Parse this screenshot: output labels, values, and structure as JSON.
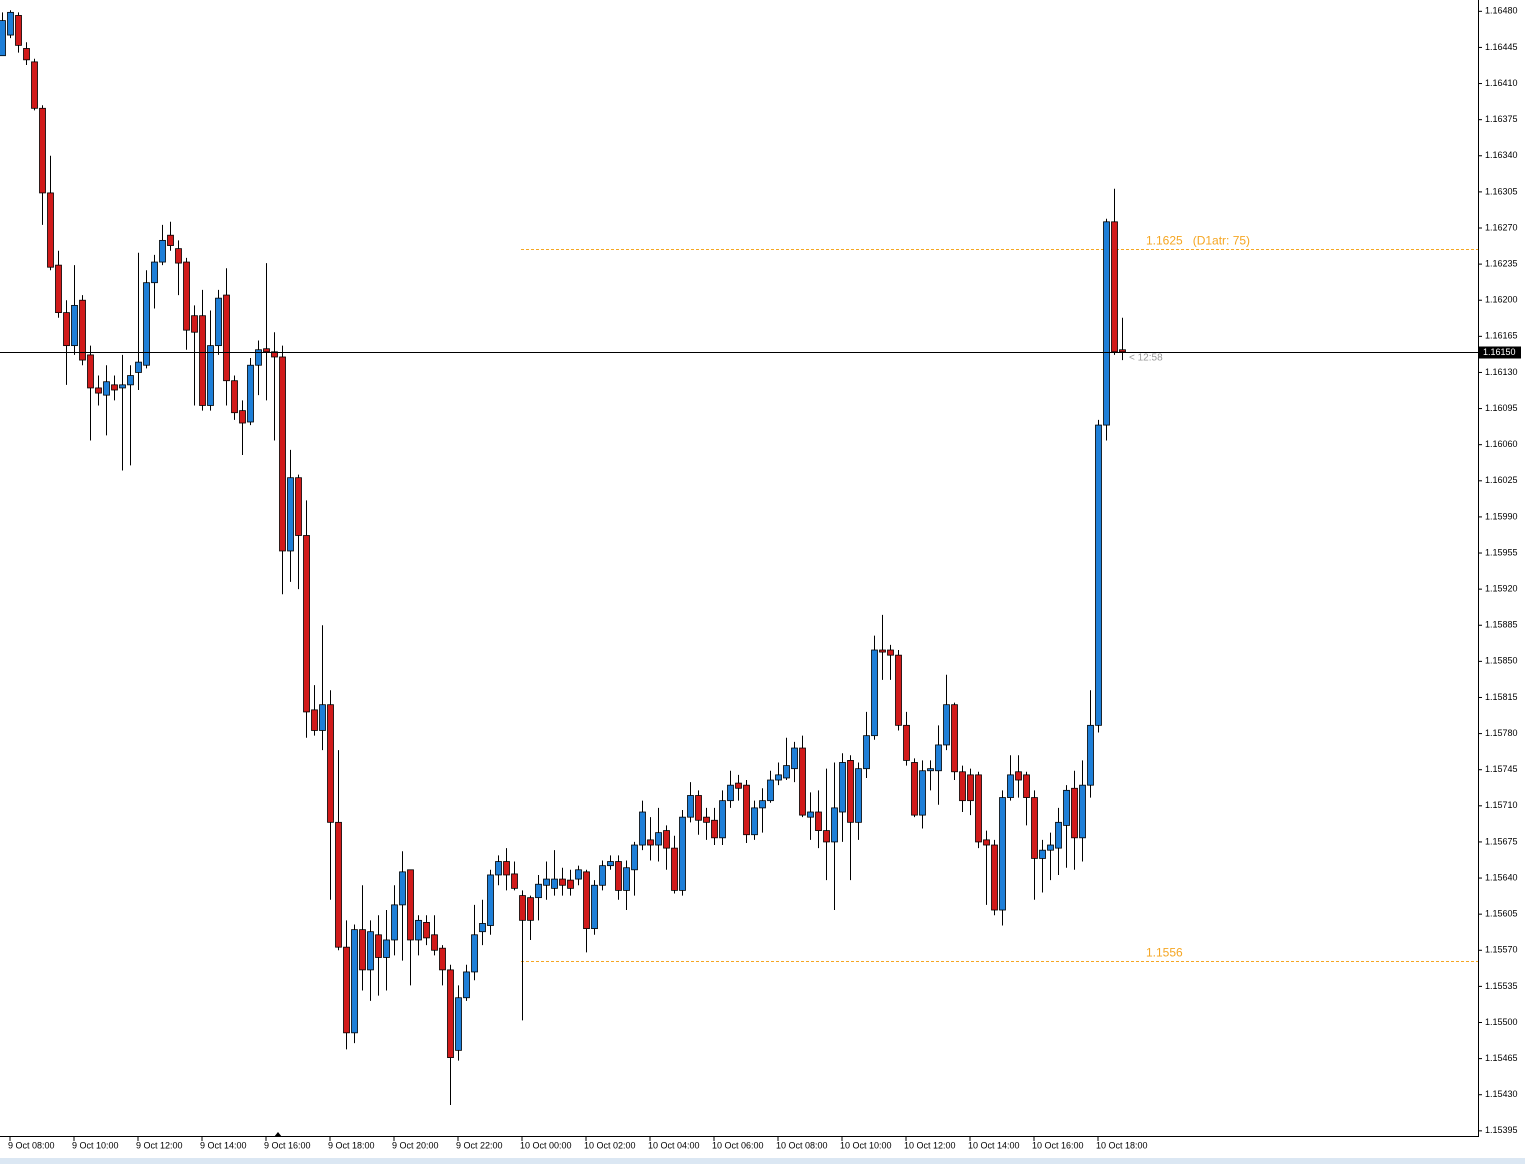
{
  "chart_data": {
    "type": "candlestick",
    "categories": [
      null,
      "9 Oct 08:00",
      null,
      null,
      null,
      null,
      null,
      null,
      null,
      "9 Oct 10:00",
      null,
      null,
      null,
      null,
      null,
      null,
      null,
      "9 Oct 12:00",
      null,
      null,
      null,
      null,
      null,
      null,
      null,
      "9 Oct 14:00",
      null,
      null,
      null,
      null,
      null,
      null,
      null,
      "9 Oct 16:00",
      null,
      null,
      null,
      null,
      null,
      null,
      null,
      "9 Oct 18:00",
      null,
      null,
      null,
      null,
      null,
      null,
      null,
      "9 Oct 20:00",
      null,
      null,
      null,
      null,
      null,
      null,
      null,
      "9 Oct 22:00",
      null,
      null,
      null,
      null,
      null,
      null,
      null,
      "10 Oct 00:00",
      null,
      null,
      null,
      null,
      null,
      null,
      null,
      "10 Oct 02:00",
      null,
      null,
      null,
      null,
      null,
      null,
      null,
      "10 Oct 04:00",
      null,
      null,
      null,
      null,
      null,
      null,
      null,
      "10 Oct 06:00",
      null,
      null,
      null,
      null,
      null,
      null,
      null,
      "10 Oct 08:00",
      null,
      null,
      null,
      null,
      null,
      null,
      null,
      "10 Oct 10:00",
      null,
      null,
      null,
      null,
      null,
      null,
      null,
      "10 Oct 12:00",
      null,
      null,
      null,
      null,
      null,
      null,
      null,
      "10 Oct 14:00",
      null,
      null,
      null,
      null,
      null,
      null,
      null,
      "10 Oct 16:00",
      null,
      null,
      null,
      null,
      null,
      null,
      null,
      "10 Oct 18:00",
      null,
      null,
      null
    ],
    "open": [
      1.16437,
      1.16457,
      1.16476,
      1.16444,
      1.16431,
      1.16386,
      1.16304,
      1.16234,
      1.16188,
      1.16156,
      1.162,
      1.16147,
      1.16115,
      1.16108,
      1.16118,
      1.16115,
      1.16118,
      1.1613,
      1.16137,
      1.16217,
      1.16237,
      1.16263,
      1.1625,
      1.16237,
      1.16185,
      1.16185,
      1.16098,
      1.16156,
      1.16205,
      1.16122,
      1.16093,
      1.16082,
      1.16137,
      1.16153,
      1.1615,
      1.16145,
      1.15957,
      1.16028,
      1.15972,
      1.15803,
      1.15783,
      1.15808,
      1.15694,
      1.15573,
      1.1549,
      1.1559,
      1.15551,
      1.15585,
      1.15563,
      1.1558,
      1.15614,
      1.15648,
      1.1558,
      1.15597,
      1.15585,
      1.15572,
      1.15551,
      1.15473,
      1.15524,
      1.15549,
      1.15588,
      1.15594,
      1.15643,
      1.15656,
      1.15644,
      1.15623,
      1.15621,
      1.15621,
      1.15633,
      1.1563,
      1.15639,
      1.15638,
      1.15639,
      1.15646,
      1.15591,
      1.15633,
      1.15652,
      1.15656,
      1.15628,
      1.15648,
      1.15672,
      1.15677,
      1.15672,
      1.15686,
      1.15669,
      1.15628,
      1.15699,
      1.1572,
      1.15699,
      1.15696,
      1.15679,
      1.15715,
      1.15732,
      1.1573,
      1.15682,
      1.15708,
      1.15715,
      1.15735,
      1.15737,
      1.15746,
      1.15766,
      1.15699,
      1.15704,
      1.15686,
      1.15675,
      1.15704,
      1.15754,
      1.15694,
      1.15746,
      1.15778,
      1.15861,
      1.15861,
      1.15856,
      1.15788,
      1.15752,
      1.15701,
      1.15744,
      1.15744,
      1.15769,
      1.15808,
      1.15743,
      1.1574,
      1.1574,
      1.15677,
      1.15672,
      1.15609,
      1.15718,
      1.15743,
      1.1574,
      1.15718,
      1.15659,
      1.15667,
      1.15669,
      1.15691,
      1.15727,
      1.15679,
      1.1573,
      1.15788,
      1.16079,
      1.16276,
      1.16152
    ],
    "high": [
      1.16479,
      1.16481,
      1.16479,
      1.1645,
      1.16434,
      1.16389,
      1.1634,
      1.16248,
      1.162,
      1.16234,
      1.16205,
      1.16156,
      1.16127,
      1.16137,
      1.16127,
      1.16147,
      1.16137,
      1.16246,
      1.16229,
      1.16244,
      1.16273,
      1.16276,
      1.16258,
      1.16241,
      1.16195,
      1.1621,
      1.1619,
      1.1621,
      1.16231,
      1.16127,
      1.16103,
      1.16144,
      1.16161,
      1.16236,
      1.16169,
      1.16156,
      1.16055,
      1.16031,
      1.16006,
      1.15827,
      1.15885,
      1.15822,
      1.15764,
      1.15599,
      1.15595,
      1.15633,
      1.15599,
      1.15604,
      1.15609,
      1.15633,
      1.15666,
      1.15648,
      1.15604,
      1.15604,
      1.15604,
      1.15575,
      1.15556,
      1.15536,
      1.15556,
      1.15614,
      1.15619,
      1.15648,
      1.15662,
      1.15669,
      1.15656,
      1.15628,
      1.15623,
      1.15643,
      1.15656,
      1.15667,
      1.1565,
      1.15648,
      1.15652,
      1.15648,
      1.15638,
      1.15657,
      1.15662,
      1.15662,
      1.15657,
      1.15675,
      1.15715,
      1.15699,
      1.15708,
      1.15691,
      1.15681,
      1.15706,
      1.15733,
      1.15725,
      1.15708,
      1.15708,
      1.15725,
      1.15744,
      1.1574,
      1.15735,
      1.15715,
      1.15727,
      1.15744,
      1.15752,
      1.15776,
      1.15772,
      1.15778,
      1.15723,
      1.15725,
      1.15746,
      1.15752,
      1.15761,
      1.15759,
      1.15752,
      1.15801,
      1.15875,
      1.15895,
      1.15866,
      1.15861,
      1.15801,
      1.15756,
      1.15754,
      1.15754,
      1.15788,
      1.15837,
      1.1581,
      1.15749,
      1.15746,
      1.15743,
      1.15686,
      1.15677,
      1.15725,
      1.15759,
      1.15759,
      1.15743,
      1.15725,
      1.15677,
      1.15684,
      1.15708,
      1.1573,
      1.15744,
      1.15754,
      1.15822,
      1.16084,
      1.16279,
      1.16308,
      1.16183
    ],
    "low": [
      1.16437,
      1.16454,
      1.1644,
      1.16428,
      1.16384,
      1.16273,
      1.16229,
      1.16183,
      1.16118,
      1.16147,
      1.16137,
      1.16064,
      1.16098,
      1.16069,
      1.16103,
      1.16035,
      1.1604,
      1.16113,
      1.16134,
      1.16192,
      1.16234,
      1.16248,
      1.16205,
      1.16152,
      1.16098,
      1.16093,
      1.16093,
      1.16147,
      1.16098,
      1.16084,
      1.1605,
      1.16079,
      1.16108,
      1.16103,
      1.16064,
      1.15915,
      1.15927,
      1.1592,
      1.15776,
      1.15778,
      1.15764,
      1.15619,
      1.1557,
      1.15474,
      1.1548,
      1.15531,
      1.15521,
      1.15526,
      1.15531,
      1.15565,
      1.1556,
      1.15536,
      1.15565,
      1.15575,
      1.15565,
      1.15536,
      1.1542,
      1.15463,
      1.15521,
      1.15541,
      1.15575,
      1.15585,
      1.15633,
      1.15628,
      1.15628,
      1.15502,
      1.1558,
      1.15599,
      1.15619,
      1.15623,
      1.15623,
      1.15623,
      1.15633,
      1.15568,
      1.15585,
      1.15628,
      1.15648,
      1.15619,
      1.15609,
      1.15623,
      1.15667,
      1.15657,
      1.15656,
      1.15648,
      1.15625,
      1.15623,
      1.15694,
      1.15682,
      1.15677,
      1.15672,
      1.15672,
      1.15708,
      1.15715,
      1.15674,
      1.15677,
      1.15684,
      1.15713,
      1.1573,
      1.15735,
      1.15733,
      1.15699,
      1.15677,
      1.15669,
      1.15638,
      1.15609,
      1.15675,
      1.15638,
      1.15677,
      1.15737,
      1.15774,
      1.15832,
      1.15832,
      1.15783,
      1.15749,
      1.15699,
      1.15688,
      1.15725,
      1.15711,
      1.15764,
      1.15735,
      1.15704,
      1.15701,
      1.15669,
      1.15614,
      1.15604,
      1.15594,
      1.15715,
      1.15718,
      1.15691,
      1.15619,
      1.15626,
      1.15638,
      1.15643,
      1.1565,
      1.15648,
      1.15656,
      1.15718,
      1.15781,
      1.16064,
      1.16147,
      1.16142
    ],
    "close": [
      1.16471,
      1.16479,
      1.16447,
      1.16433,
      1.16386,
      1.16304,
      1.16232,
      1.16188,
      1.16156,
      1.16195,
      1.16142,
      1.16115,
      1.1611,
      1.16121,
      1.16113,
      1.16118,
      1.16127,
      1.1614,
      1.16217,
      1.16237,
      1.16258,
      1.16253,
      1.16236,
      1.16171,
      1.16169,
      1.16098,
      1.16156,
      1.16202,
      1.16122,
      1.16091,
      1.16081,
      1.16137,
      1.16152,
      1.1615,
      1.16145,
      1.15957,
      1.16028,
      1.15972,
      1.15801,
      1.15783,
      1.15808,
      1.15694,
      1.15573,
      1.1549,
      1.1559,
      1.15551,
      1.15588,
      1.15563,
      1.1558,
      1.15614,
      1.15646,
      1.1558,
      1.15599,
      1.15582,
      1.1557,
      1.15551,
      1.15466,
      1.15524,
      1.15549,
      1.15585,
      1.15596,
      1.15643,
      1.15656,
      1.15643,
      1.1563,
      1.15599,
      1.15599,
      1.15634,
      1.15639,
      1.15639,
      1.15633,
      1.1563,
      1.15648,
      1.15591,
      1.15633,
      1.15652,
      1.15656,
      1.15628,
      1.1565,
      1.15672,
      1.15704,
      1.15672,
      1.15684,
      1.15669,
      1.15628,
      1.15699,
      1.1572,
      1.15696,
      1.15694,
      1.15679,
      1.15715,
      1.1573,
      1.15727,
      1.15682,
      1.15708,
      1.15715,
      1.15735,
      1.1574,
      1.15749,
      1.15766,
      1.15701,
      1.15704,
      1.15686,
      1.15675,
      1.15708,
      1.15752,
      1.15694,
      1.15746,
      1.15778,
      1.15861,
      1.15859,
      1.15856,
      1.15788,
      1.15754,
      1.15701,
      1.15744,
      1.15746,
      1.15769,
      1.15808,
      1.15743,
      1.15715,
      1.15715,
      1.15675,
      1.15672,
      1.15609,
      1.15718,
      1.1574,
      1.15735,
      1.15718,
      1.15659,
      1.15667,
      1.15672,
      1.15694,
      1.15725,
      1.15679,
      1.1573,
      1.15788,
      1.16079,
      1.16276,
      1.1615,
      1.1615
    ],
    "up_color": "#1e7fd8",
    "down_color": "#d11a1a",
    "ylim": [
      1.1539,
      1.1649
    ],
    "yticks": [
      {
        "value": 1.1648,
        "label": "1.16480"
      },
      1.16445,
      {
        "value": 1.1641,
        "label": "1.16410"
      },
      1.16375,
      {
        "value": 1.1634,
        "label": "1.16340"
      },
      1.16305,
      {
        "value": 1.1627,
        "label": "1.16270"
      },
      1.16235,
      {
        "value": 1.162,
        "label": "1.16200"
      },
      1.16165,
      {
        "value": 1.1613,
        "label": "1.16130"
      },
      1.16095,
      {
        "value": 1.1606,
        "label": "1.16060"
      },
      1.16025,
      {
        "value": 1.1599,
        "label": "1.15990"
      },
      1.15955,
      {
        "value": 1.1592,
        "label": "1.15920"
      },
      1.15885,
      {
        "value": 1.1585,
        "label": "1.15850"
      },
      1.15815,
      {
        "value": 1.1578,
        "label": "1.15780"
      },
      1.15745,
      {
        "value": 1.1571,
        "label": "1.15710"
      },
      1.15675,
      {
        "value": 1.1564,
        "label": "1.15640"
      },
      1.15605,
      {
        "value": 1.1557,
        "label": "1.15570"
      },
      1.15535,
      {
        "value": 1.155,
        "label": "1.15500"
      },
      1.15465,
      {
        "value": 1.1543,
        "label": "1.15430"
      },
      1.15395
    ],
    "levels": [
      {
        "value": 1.1625,
        "label": "1.1625   (D1atr: 75)",
        "color": "#f5a623"
      },
      {
        "value": 1.1556,
        "label": "1.1556",
        "color": "#f5a623"
      }
    ],
    "current_price": {
      "value": 1.1615,
      "label": "1.16150"
    },
    "timer": "< 12:58",
    "grid": false
  }
}
